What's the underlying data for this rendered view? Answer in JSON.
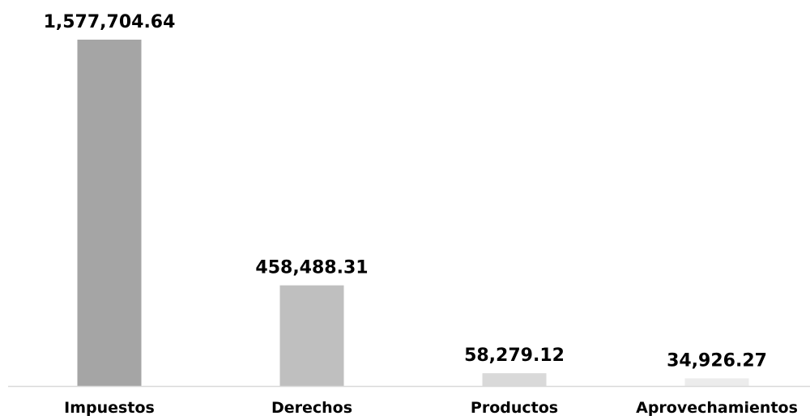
{
  "chart_data": {
    "type": "bar",
    "title": "",
    "xlabel": "",
    "ylabel": "",
    "categories": [
      "Impuestos",
      "Derechos",
      "Productos",
      "Aprovechamientos"
    ],
    "values": [
      1577704.64,
      458488.31,
      58279.12,
      34926.27
    ],
    "value_labels": [
      "1,577,704.64",
      "458,488.31",
      "58,279.12",
      "34,926.27"
    ],
    "bar_colors": [
      "#a5a5a5",
      "#bfbfbf",
      "#d9d9d9",
      "#ececec"
    ],
    "axis_color": "#d9d9d9",
    "ylim": [
      0,
      1577704.64
    ],
    "grid": false,
    "legend": "none"
  }
}
